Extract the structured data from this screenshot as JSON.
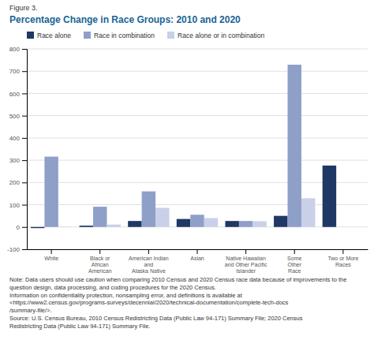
{
  "chart_data": {
    "type": "bar",
    "title": "Percentage Change in Race Groups: 2010 and 2020",
    "annotations": [
      "Figure 3.",
      "Note: Data users should use caution when comparing 2010 Census and 2020 Census race data because of improvements to the question design, data processing, and coding procedures for the 2020 Census.\nInformation on confidentiality protection, nonsampling error, and definitions is available at\n<https://www2.census.gov/programs-surveys/decennial/2020/technical-documentation/complete-tech-docs\n/summary-file/>.\nSource: U.S. Census Bureau, 2010 Census Redistricting Data (Public Law 94-171) Summary File; 2020 Census\nRedistricting Data (Public Law 94-171) Summary File."
    ],
    "categories": [
      "White",
      "Black or\nAfrican\nAmerican",
      "American Indian\nand\nAlaska Native",
      "Asian",
      "Native Hawaiian\nand Other Pacific\nIslander",
      "Some\nOther\nRace",
      "Two or More\nRaces"
    ],
    "series": [
      {
        "name": "Race alone",
        "color": "#1f3864",
        "values": [
          -5,
          6,
          27,
          36,
          27,
          50,
          276
        ]
      },
      {
        "name": "Race in combination",
        "color": "#8ea0c8",
        "values": [
          316,
          91,
          160,
          55,
          27,
          729,
          0
        ]
      },
      {
        "name": "Race alone or in combination",
        "color": "#c9d0e8",
        "values": [
          1,
          11,
          86,
          40,
          26,
          129,
          0
        ]
      }
    ],
    "ylim": [
      -100,
      800
    ],
    "yticks": [
      -100,
      0,
      100,
      200,
      300,
      400,
      500,
      600,
      700,
      800
    ],
    "grid": true,
    "legend": "top"
  }
}
